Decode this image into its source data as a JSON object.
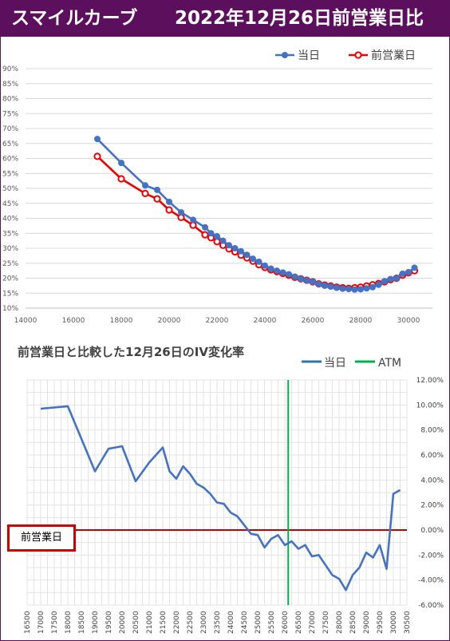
{
  "header": {
    "left": "スマイルカーブ",
    "right": "2022年12月26日前営業日比",
    "bg_color": "#5c0f5c"
  },
  "chart_data": [
    {
      "type": "line",
      "title": "",
      "legend_position": "top-right",
      "grid": true,
      "xlim": [
        14000,
        31000
      ],
      "ylim": [
        0.1,
        0.9
      ],
      "x_ticks": [
        "14000",
        "16000",
        "18000",
        "20000",
        "22000",
        "24000",
        "26000",
        "28000",
        "30000"
      ],
      "y_ticks": [
        "10%",
        "15%",
        "20%",
        "25%",
        "30%",
        "35%",
        "40%",
        "45%",
        "50%",
        "55%",
        "60%",
        "65%",
        "70%",
        "75%",
        "80%",
        "85%",
        "90%"
      ],
      "series": [
        {
          "name": "当日",
          "color": "#4472c4",
          "points": [
            [
              17000,
              0.665
            ],
            [
              18000,
              0.585
            ],
            [
              19000,
              0.51
            ],
            [
              19500,
              0.495
            ],
            [
              20000,
              0.455
            ],
            [
              20500,
              0.42
            ],
            [
              21000,
              0.395
            ],
            [
              21500,
              0.37
            ],
            [
              21750,
              0.35
            ],
            [
              22000,
              0.34
            ],
            [
              22250,
              0.325
            ],
            [
              22500,
              0.31
            ],
            [
              22750,
              0.3
            ],
            [
              23000,
              0.29
            ],
            [
              23250,
              0.278
            ],
            [
              23500,
              0.265
            ],
            [
              23750,
              0.255
            ],
            [
              24000,
              0.242
            ],
            [
              24250,
              0.232
            ],
            [
              24500,
              0.225
            ],
            [
              24750,
              0.219
            ],
            [
              25000,
              0.213
            ],
            [
              25250,
              0.205
            ],
            [
              25500,
              0.198
            ],
            [
              25750,
              0.192
            ],
            [
              26000,
              0.188
            ],
            [
              26250,
              0.18
            ],
            [
              26500,
              0.175
            ],
            [
              26750,
              0.172
            ],
            [
              27000,
              0.168
            ],
            [
              27250,
              0.165
            ],
            [
              27500,
              0.164
            ],
            [
              27750,
              0.162
            ],
            [
              28000,
              0.163
            ],
            [
              28250,
              0.166
            ],
            [
              28500,
              0.17
            ],
            [
              28750,
              0.178
            ],
            [
              29000,
              0.19
            ],
            [
              29250,
              0.197
            ],
            [
              29500,
              0.2
            ],
            [
              29750,
              0.215
            ],
            [
              30000,
              0.22
            ],
            [
              30250,
              0.235
            ]
          ]
        },
        {
          "name": "前営業日",
          "color": "#ee0000",
          "points": [
            [
              17000,
              0.607
            ],
            [
              18000,
              0.532
            ],
            [
              19000,
              0.483
            ],
            [
              19500,
              0.465
            ],
            [
              20000,
              0.428
            ],
            [
              20500,
              0.403
            ],
            [
              21000,
              0.377
            ],
            [
              21500,
              0.345
            ],
            [
              21750,
              0.335
            ],
            [
              22000,
              0.322
            ],
            [
              22250,
              0.31
            ],
            [
              22500,
              0.298
            ],
            [
              22750,
              0.288
            ],
            [
              23000,
              0.277
            ],
            [
              23250,
              0.268
            ],
            [
              23500,
              0.257
            ],
            [
              23750,
              0.245
            ],
            [
              24000,
              0.236
            ],
            [
              24250,
              0.228
            ],
            [
              24500,
              0.222
            ],
            [
              24750,
              0.216
            ],
            [
              25000,
              0.21
            ],
            [
              25250,
              0.203
            ],
            [
              25500,
              0.198
            ],
            [
              25750,
              0.193
            ],
            [
              26000,
              0.188
            ],
            [
              26250,
              0.181
            ],
            [
              26500,
              0.177
            ],
            [
              26750,
              0.174
            ],
            [
              27000,
              0.17
            ],
            [
              27250,
              0.168
            ],
            [
              27500,
              0.166
            ],
            [
              27750,
              0.168
            ],
            [
              28000,
              0.17
            ],
            [
              28250,
              0.174
            ],
            [
              28500,
              0.178
            ],
            [
              28750,
              0.182
            ],
            [
              29000,
              0.188
            ],
            [
              29250,
              0.195
            ],
            [
              29500,
              0.2
            ],
            [
              29750,
              0.21
            ],
            [
              30000,
              0.218
            ],
            [
              30250,
              0.225
            ]
          ]
        }
      ]
    },
    {
      "type": "line",
      "title": "前営業日と比較した12月26日のIV変化率",
      "legend_position": "top-right",
      "grid": true,
      "y_axis_side": "right",
      "ylim": [
        -0.06,
        0.12
      ],
      "x_ticks": [
        "16500",
        "17000",
        "17500",
        "18000",
        "18500",
        "19000",
        "19500",
        "20000",
        "20500",
        "21000",
        "21500",
        "22000",
        "22500",
        "23000",
        "23500",
        "24000",
        "24500",
        "25000",
        "25500",
        "26000",
        "26500",
        "27000",
        "27500",
        "28000",
        "28500",
        "29000",
        "29500",
        "30000",
        "30500"
      ],
      "y_ticks": [
        "-6.00%",
        "-4.00%",
        "-2.00%",
        "0.00%",
        "2.00%",
        "4.00%",
        "6.00%",
        "8.00%",
        "10.00%",
        "12.00%"
      ],
      "atm": {
        "name": "ATM",
        "x": 26125,
        "color": "#00b050"
      },
      "zero_line_label": "前営業日",
      "series": [
        {
          "name": "当日",
          "color": "#4472c4",
          "points": [
            [
              17000,
              0.097
            ],
            [
              18000,
              0.099
            ],
            [
              19000,
              0.047
            ],
            [
              19500,
              0.065
            ],
            [
              20000,
              0.067
            ],
            [
              20500,
              0.039
            ],
            [
              21000,
              0.054
            ],
            [
              21500,
              0.066
            ],
            [
              21750,
              0.047
            ],
            [
              22000,
              0.041
            ],
            [
              22250,
              0.051
            ],
            [
              22500,
              0.045
            ],
            [
              22750,
              0.037
            ],
            [
              23000,
              0.034
            ],
            [
              23250,
              0.029
            ],
            [
              23500,
              0.022
            ],
            [
              23750,
              0.021
            ],
            [
              24000,
              0.014
            ],
            [
              24250,
              0.011
            ],
            [
              24500,
              0.004
            ],
            [
              24750,
              -0.003
            ],
            [
              25000,
              -0.004
            ],
            [
              25250,
              -0.014
            ],
            [
              25500,
              -0.007
            ],
            [
              25750,
              -0.004
            ],
            [
              26000,
              -0.012
            ],
            [
              26250,
              -0.009
            ],
            [
              26500,
              -0.015
            ],
            [
              26750,
              -0.012
            ],
            [
              27000,
              -0.021
            ],
            [
              27250,
              -0.02
            ],
            [
              27500,
              -0.028
            ],
            [
              27750,
              -0.036
            ],
            [
              28000,
              -0.039
            ],
            [
              28250,
              -0.048
            ],
            [
              28500,
              -0.036
            ],
            [
              28750,
              -0.03
            ],
            [
              29000,
              -0.018
            ],
            [
              29250,
              -0.022
            ],
            [
              29500,
              -0.012
            ],
            [
              29750,
              -0.031
            ],
            [
              30000,
              0.029
            ],
            [
              30250,
              0.032
            ]
          ]
        }
      ]
    }
  ]
}
